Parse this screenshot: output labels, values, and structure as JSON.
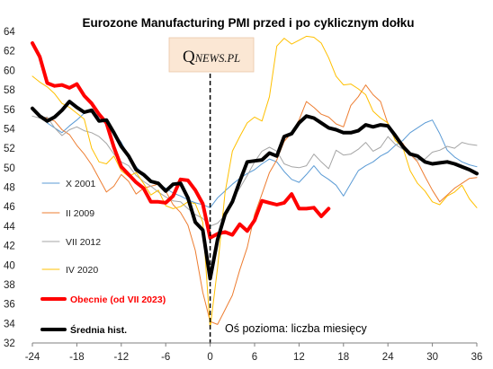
{
  "chart_data": {
    "type": "line",
    "title": "Eurozone Manufacturing  PMI przed i po cyklicznym dołku",
    "xlabel": "",
    "ylabel": "",
    "xlim": [
      -24,
      36
    ],
    "ylim": [
      32,
      64
    ],
    "xticks": [
      -24,
      -18,
      -12,
      -6,
      0,
      6,
      12,
      18,
      24,
      30,
      36
    ],
    "yticks": [
      32,
      34,
      36,
      38,
      40,
      42,
      44,
      46,
      48,
      50,
      52,
      54,
      56,
      58,
      60,
      62,
      64
    ],
    "grid": false,
    "legend_position": "left",
    "annotation": "Oś pozioma: liczba miesięcy",
    "watermark": "QNEWS.PL",
    "vline_x": 0,
    "series": [
      {
        "name": "X 2001",
        "color": "#5b9bd5",
        "width": 1,
        "x": [
          -24,
          -23,
          -22,
          -21,
          -20,
          -19,
          -18,
          -17,
          -16,
          -15,
          -14,
          -13,
          -12,
          -11,
          -10,
          -9,
          -8,
          -7,
          -6,
          -5,
          -4,
          -3,
          -2,
          -1,
          0,
          1,
          2,
          3,
          4,
          5,
          6,
          7,
          8,
          9,
          10,
          11,
          12,
          13,
          14,
          15,
          16,
          17,
          18,
          19,
          20,
          21,
          22,
          23,
          24,
          25,
          26,
          27,
          28,
          29,
          30,
          31,
          32,
          33,
          34,
          35,
          36
        ],
        "y": [
          56.2,
          55.4,
          54.6,
          54.1,
          53.6,
          54.3,
          54.9,
          55.6,
          55.9,
          55.2,
          54.6,
          53.6,
          52.6,
          51.2,
          50.1,
          49.3,
          48.5,
          48.3,
          47.9,
          47.4,
          47.1,
          46.7,
          46.4,
          46.2,
          45.9,
          46.9,
          47.6,
          48.3,
          48.9,
          49.4,
          49.8,
          50.4,
          50.9,
          50.6,
          49.6,
          48.8,
          48.5,
          49.3,
          50.2,
          49.3,
          48.8,
          48.2,
          47.1,
          48.4,
          49.7,
          50.2,
          50.6,
          51.2,
          51.6,
          52.3,
          52.8,
          53.6,
          54.1,
          54.6,
          54.9,
          53.5,
          51.8,
          51.1,
          50.6,
          50.3,
          50.1
        ]
      },
      {
        "name": "II 2009",
        "color": "#ed7d31",
        "width": 1,
        "x": [
          -24,
          -23,
          -22,
          -21,
          -20,
          -19,
          -18,
          -17,
          -16,
          -15,
          -14,
          -13,
          -12,
          -11,
          -10,
          -9,
          -8,
          -7,
          -6,
          -5,
          -4,
          -3,
          -2,
          -1,
          0,
          1,
          2,
          3,
          4,
          5,
          6,
          7,
          8,
          9,
          10,
          11,
          12,
          13,
          14,
          15,
          16,
          17,
          18,
          19,
          20,
          21,
          22,
          23,
          24,
          25,
          26,
          27,
          28,
          29,
          30,
          31,
          32,
          33,
          34,
          35,
          36
        ],
        "y": [
          55.9,
          55.3,
          55.1,
          54.8,
          53.9,
          53.4,
          52.3,
          51.4,
          50.3,
          48.9,
          47.5,
          48.1,
          49.3,
          48.6,
          47.3,
          47.9,
          48.1,
          48.3,
          47.6,
          46.2,
          45.4,
          44.1,
          41.5,
          37.2,
          34.2,
          33.9,
          35.4,
          36.9,
          39.5,
          41.8,
          45.2,
          47.3,
          49.5,
          50.8,
          52.7,
          53.6,
          54.9,
          56.8,
          56.2,
          55.5,
          55.2,
          54.5,
          54.2,
          56.4,
          57.3,
          58.5,
          57.5,
          56.8,
          54.5,
          53.2,
          52.5,
          51.4,
          50.6,
          49.1,
          47.7,
          46.5,
          47.2,
          47.9,
          48.4,
          48.9,
          49.0
        ]
      },
      {
        "name": "VII 2012",
        "color": "#a5a5a5",
        "width": 1,
        "x": [
          -24,
          -23,
          -22,
          -21,
          -20,
          -19,
          -18,
          -17,
          -16,
          -15,
          -14,
          -13,
          -12,
          -11,
          -10,
          -9,
          -8,
          -7,
          -6,
          -5,
          -4,
          -3,
          -2,
          -1,
          0,
          1,
          2,
          3,
          4,
          5,
          6,
          7,
          8,
          9,
          10,
          11,
          12,
          13,
          14,
          15,
          16,
          17,
          18,
          19,
          20,
          21,
          22,
          23,
          24,
          25,
          26,
          27,
          28,
          29,
          30,
          31,
          32,
          33,
          34,
          35,
          36
        ],
        "y": [
          55.3,
          55.1,
          55.2,
          54.1,
          53.3,
          53.9,
          54.2,
          53.8,
          53.6,
          53.2,
          52.5,
          51.4,
          50.6,
          50.2,
          49.2,
          48.6,
          48.1,
          47.5,
          47.0,
          46.6,
          46.5,
          45.8,
          45.2,
          44.8,
          44.0,
          44.3,
          45.1,
          46.7,
          47.9,
          49.2,
          50.6,
          51.7,
          52.1,
          51.7,
          50.4,
          50.1,
          50.0,
          50.2,
          51.4,
          50.6,
          49.9,
          51.8,
          51.3,
          51.4,
          51.9,
          52.6,
          51.7,
          52.1,
          53.2,
          52.4,
          51.9,
          51.4,
          50.8,
          50.9,
          51.6,
          51.8,
          52.2,
          52.0,
          52.6,
          52.4,
          52.3
        ]
      },
      {
        "name": "IV 2020",
        "color": "#ffc000",
        "width": 1,
        "x": [
          -24,
          -23,
          -22,
          -21,
          -20,
          -19,
          -18,
          -17,
          -16,
          -15,
          -14,
          -13,
          -12,
          -11,
          -10,
          -9,
          -8,
          -7,
          -6,
          -5,
          -4,
          -3,
          -2,
          -1,
          0,
          1,
          2,
          3,
          4,
          5,
          6,
          7,
          8,
          9,
          10,
          11,
          12,
          13,
          14,
          15,
          16,
          17,
          18,
          19,
          20,
          21,
          22,
          23,
          24,
          25,
          26,
          27,
          28,
          29,
          30,
          31,
          32,
          33,
          34,
          35,
          36
        ],
        "y": [
          59.4,
          58.8,
          58.3,
          57.6,
          56.6,
          56.2,
          55.6,
          55.0,
          52.0,
          50.6,
          50.4,
          51.2,
          49.7,
          49.1,
          49.5,
          48.4,
          47.2,
          47.7,
          46.1,
          45.8,
          46.0,
          46.5,
          46.3,
          44.4,
          33.5,
          39.7,
          47.4,
          51.7,
          53.2,
          54.6,
          55.2,
          54.8,
          57.3,
          62.5,
          63.3,
          62.7,
          63.1,
          63.5,
          63.4,
          62.8,
          61.3,
          59.4,
          58.5,
          58.6,
          58.1,
          57.5,
          55.8,
          55.1,
          54.6,
          52.8,
          52.1,
          49.7,
          48.4,
          47.6,
          46.5,
          46.2,
          47.1,
          47.5,
          48.2,
          46.8,
          45.9
        ]
      },
      {
        "name": "Obecnie (od VII 2023)",
        "color": "#ff0000",
        "width": 4,
        "x": [
          -24,
          -23,
          -22,
          -21,
          -20,
          -19,
          -18,
          -17,
          -16,
          -15,
          -14,
          -13,
          -12,
          -11,
          -10,
          -9,
          -8,
          -7,
          -6,
          -5,
          -4,
          -3,
          -2,
          -1,
          0,
          1,
          2,
          3,
          4,
          5,
          6,
          7,
          8,
          9,
          10,
          11,
          12,
          13,
          14,
          15,
          16
        ],
        "y": [
          62.8,
          61.4,
          58.7,
          58.4,
          58.5,
          58.2,
          58.6,
          57.4,
          56.6,
          55.5,
          54.6,
          52.1,
          50.1,
          49.3,
          48.5,
          47.9,
          46.5,
          46.5,
          46.4,
          47.1,
          48.8,
          48.7,
          47.7,
          46.3,
          42.8,
          43.2,
          43.4,
          43.1,
          44.2,
          43.5,
          44.6,
          46.6,
          46.4,
          46.2,
          46.4,
          47.3,
          45.8,
          45.8,
          45.9,
          45.0,
          45.8
        ]
      },
      {
        "name": "Średnia hist.",
        "color": "#000000",
        "width": 4,
        "x": [
          -24,
          -23,
          -22,
          -21,
          -20,
          -19,
          -18,
          -17,
          -16,
          -15,
          -14,
          -13,
          -12,
          -11,
          -10,
          -9,
          -8,
          -7,
          -6,
          -5,
          -4,
          -3,
          -2,
          -1,
          0,
          1,
          2,
          3,
          4,
          5,
          6,
          7,
          8,
          9,
          10,
          11,
          12,
          13,
          14,
          15,
          16,
          17,
          18,
          19,
          20,
          21,
          22,
          23,
          24,
          25,
          26,
          27,
          28,
          29,
          30,
          31,
          32,
          33,
          34,
          35,
          36
        ],
        "y": [
          56.1,
          55.3,
          54.8,
          55.2,
          55.9,
          56.8,
          56.2,
          55.7,
          55.9,
          54.8,
          54.9,
          53.6,
          52.2,
          51.2,
          49.8,
          49.3,
          48.6,
          48.4,
          47.6,
          48.3,
          48.4,
          46.9,
          44.4,
          43.6,
          38.6,
          42.6,
          45.2,
          46.5,
          48.6,
          50.6,
          50.7,
          50.8,
          51.5,
          51.2,
          53.2,
          53.5,
          54.6,
          55.3,
          55.1,
          54.6,
          54.1,
          53.9,
          53.6,
          53.6,
          53.8,
          54.4,
          54.2,
          54.4,
          54.3,
          53.3,
          52.2,
          51.4,
          51.2,
          50.6,
          50.4,
          50.5,
          50.6,
          50.4,
          50.1,
          49.8,
          49.4
        ]
      }
    ]
  }
}
